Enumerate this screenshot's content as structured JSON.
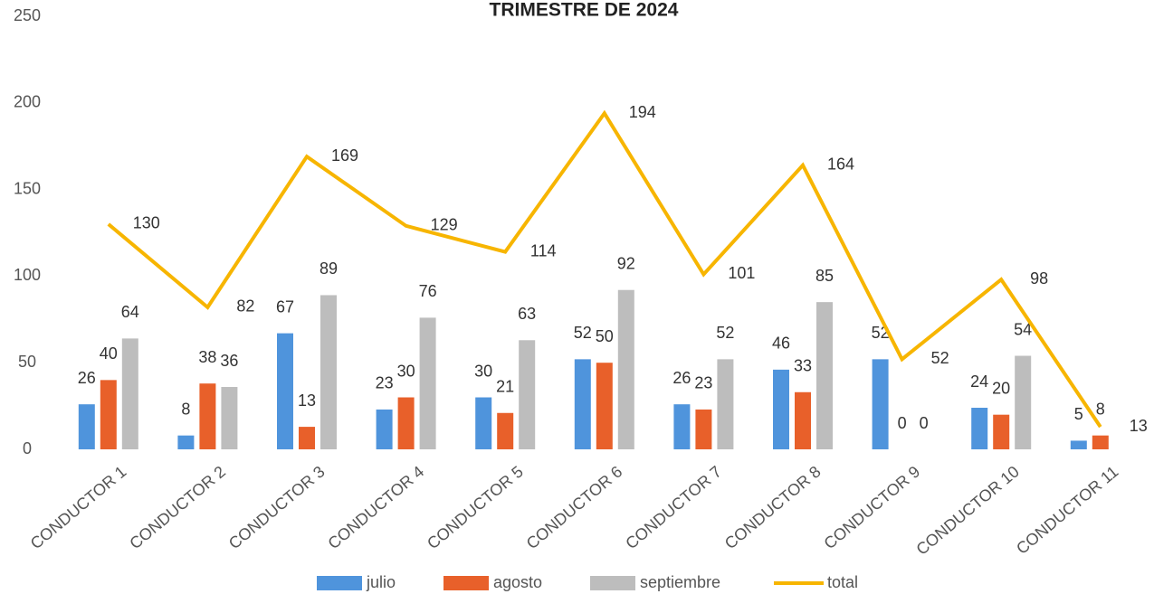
{
  "chart_data": {
    "type": "bar_line",
    "title": "TRIMESTRE DE 2024",
    "categories": [
      "CONDUCTOR 1",
      "CONDUCTOR 2",
      "CONDUCTOR 3",
      "CONDUCTOR 4",
      "CONDUCTOR 5",
      "CONDUCTOR 6",
      "CONDUCTOR 7",
      "CONDUCTOR 8",
      "CONDUCTOR 9",
      "CONDUCTOR 10",
      "CONDUCTOR 11"
    ],
    "series": [
      {
        "name": "julio",
        "type": "bar",
        "color": "#4f94dc",
        "values": [
          26,
          8,
          67,
          23,
          30,
          52,
          26,
          46,
          52,
          24,
          5
        ]
      },
      {
        "name": "agosto",
        "type": "bar",
        "color": "#e8602a",
        "values": [
          40,
          38,
          13,
          30,
          21,
          50,
          23,
          33,
          0,
          20,
          8
        ]
      },
      {
        "name": "septiembre",
        "type": "bar",
        "color": "#bdbdbd",
        "values": [
          64,
          36,
          89,
          76,
          63,
          92,
          52,
          85,
          0,
          54,
          null
        ]
      },
      {
        "name": "total",
        "type": "line",
        "color": "#f7b500",
        "values": [
          130,
          82,
          169,
          129,
          114,
          194,
          101,
          164,
          52,
          98,
          13
        ]
      }
    ],
    "ylim": [
      0,
      250
    ],
    "yticks": [
      0,
      50,
      100,
      150,
      200,
      250
    ],
    "grid": false
  }
}
